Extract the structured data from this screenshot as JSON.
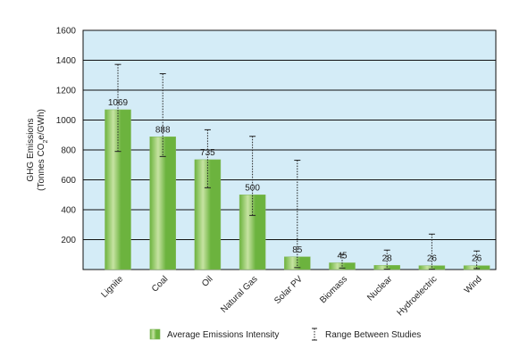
{
  "chart_data": {
    "type": "bar",
    "categories": [
      "Lignite",
      "Coal",
      "Oil",
      "Natural Gas",
      "Solar PV",
      "Biomass",
      "Nuclear",
      "Hydroelectric",
      "Wind"
    ],
    "values": [
      1069,
      888,
      735,
      500,
      85,
      45,
      28,
      26,
      26
    ],
    "value_labels": [
      "1069",
      "888",
      "735",
      "500",
      "85",
      "45",
      "28",
      "26",
      "26"
    ],
    "ranges": [
      [
        790,
        1372
      ],
      [
        756,
        1310
      ],
      [
        547,
        935
      ],
      [
        362,
        891
      ],
      [
        13,
        731
      ],
      [
        10,
        101
      ],
      [
        2,
        130
      ],
      [
        2,
        237
      ],
      [
        6,
        124
      ]
    ],
    "ylabel_line1": "GHG Emissions",
    "ylabel_line2_pre": "(Tonnes CO",
    "ylabel_line2_sub": "2",
    "ylabel_line2_post": "e/GWh)",
    "ylim": [
      0,
      1600
    ],
    "yticks": [
      "1600",
      "1400",
      "1200",
      "1000",
      "800",
      "600",
      "400",
      "200"
    ],
    "ytick_values": [
      1600,
      1400,
      1200,
      1000,
      800,
      600,
      400,
      200
    ],
    "grid": true,
    "legend_position": "bottom",
    "legend": {
      "bar_label": "Average Emissions Intensity",
      "range_label": "Range Between Studies"
    },
    "colors": {
      "plot_background": "#d4ecf7",
      "bar_light": "#c6e3a2",
      "bar_dark": "#6cb33e",
      "grid": "#111111"
    }
  }
}
